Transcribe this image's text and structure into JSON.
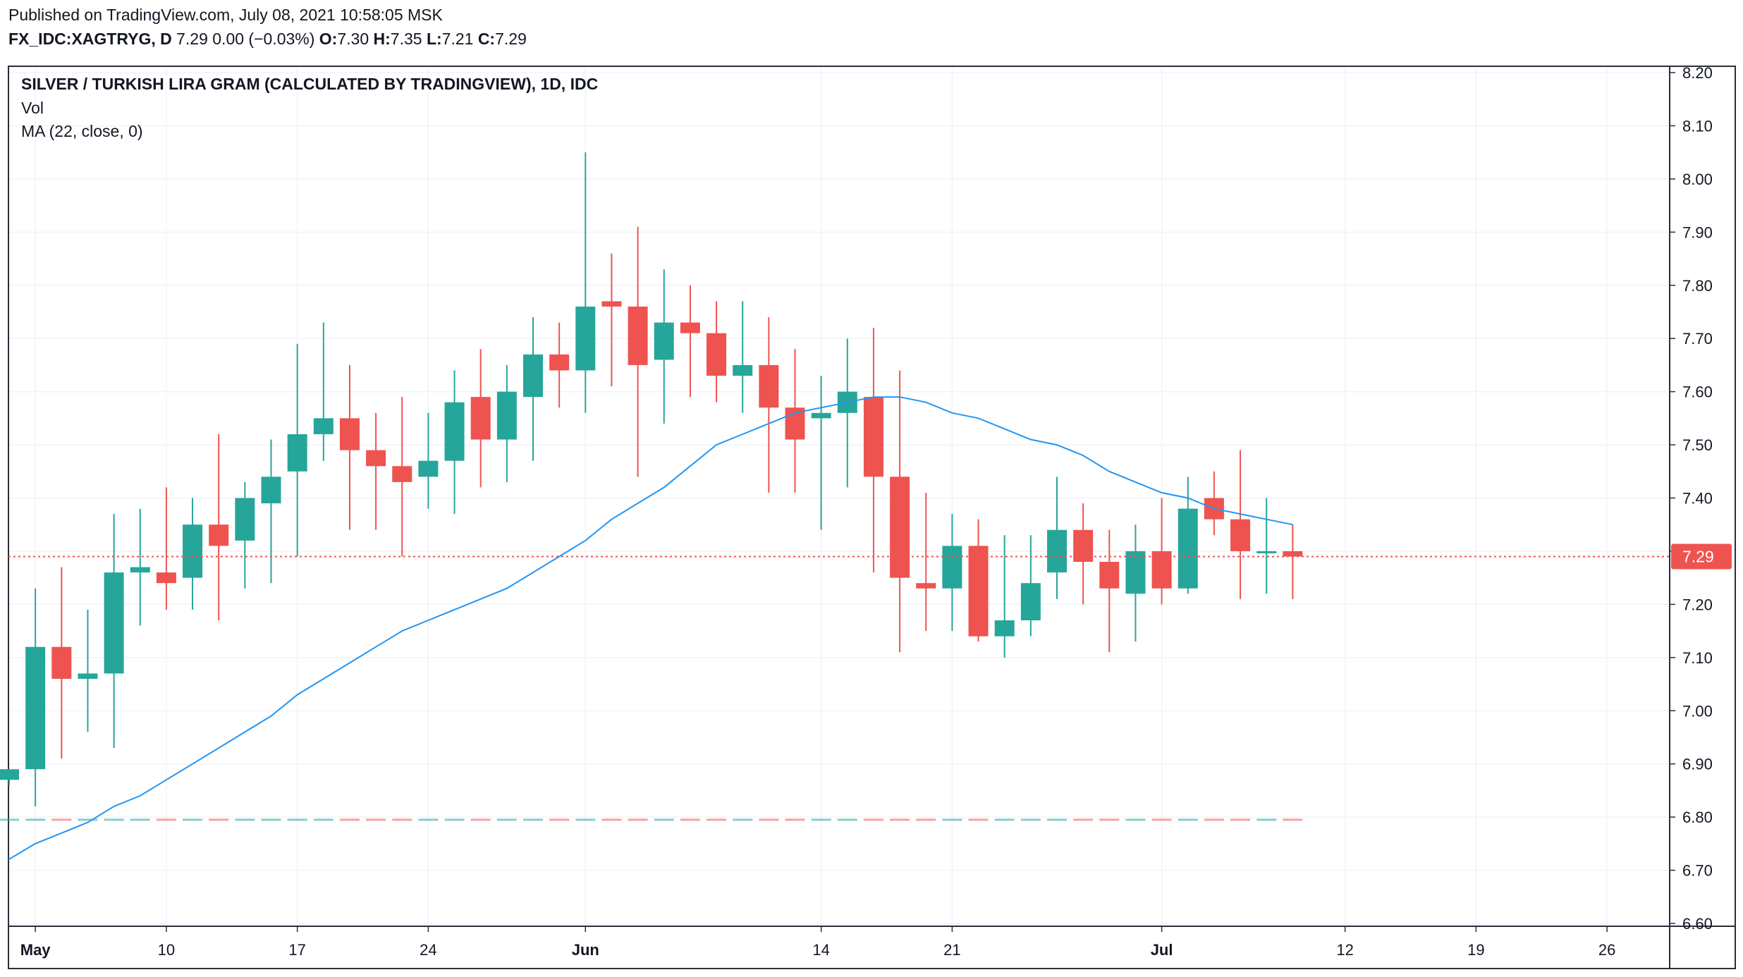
{
  "header": {
    "published": "Published on TradingView.com, July 08, 2021 10:58:05 MSK",
    "symbol": "FX_IDC:XAGTRYG, D",
    "last": "7.29",
    "change": "0.00 (−0.03%)",
    "open_label": "O:",
    "open": "7.30",
    "high_label": "H:",
    "high": "7.35",
    "low_label": "L:",
    "low": "7.21",
    "close_label": "C:",
    "close": "7.29"
  },
  "legend": {
    "title": "SILVER / TURKISH LIRA GRAM (CALCULATED BY TRADINGVIEW), 1D, IDC",
    "vol": "Vol",
    "ma": "MA (22, close, 0)"
  },
  "colors": {
    "up": "#26a69a",
    "down": "#ef5350",
    "ma": "#2196f3",
    "price_line": "#ef5350",
    "grid": "#f0f3fa",
    "text": "#131722"
  },
  "chart_data": {
    "type": "candlestick",
    "ylim": [
      6.6,
      8.2
    ],
    "y_ticks": [
      "8.20",
      "8.10",
      "8.00",
      "7.90",
      "7.80",
      "7.70",
      "7.60",
      "7.50",
      "7.40",
      "7.30",
      "7.20",
      "7.10",
      "7.00",
      "6.90",
      "6.80",
      "6.70",
      "6.60"
    ],
    "x_ticks": [
      {
        "label": "May",
        "date": "2021-05-03",
        "bold": true
      },
      {
        "label": "10",
        "date": "2021-05-10",
        "bold": false
      },
      {
        "label": "17",
        "date": "2021-05-17",
        "bold": false
      },
      {
        "label": "24",
        "date": "2021-05-24",
        "bold": false
      },
      {
        "label": "Jun",
        "date": "2021-06-01",
        "bold": true
      },
      {
        "label": "14",
        "date": "2021-06-14",
        "bold": false
      },
      {
        "label": "21",
        "date": "2021-06-21",
        "bold": false
      },
      {
        "label": "Jul",
        "date": "2021-07-01",
        "bold": true
      },
      {
        "label": "12",
        "date": "2021-07-12",
        "bold": false
      },
      {
        "label": "19",
        "date": "2021-07-19",
        "bold": false
      },
      {
        "label": "26",
        "date": "2021-07-26",
        "bold": false
      }
    ],
    "last_price": "7.29",
    "candles": [
      {
        "date": "2021-04-30",
        "open": 6.87,
        "high": 6.89,
        "low": 6.86,
        "close": 6.89
      },
      {
        "date": "2021-05-03",
        "open": 6.89,
        "high": 7.23,
        "low": 6.82,
        "close": 7.12
      },
      {
        "date": "2021-05-04",
        "open": 7.12,
        "high": 7.27,
        "low": 6.91,
        "close": 7.06
      },
      {
        "date": "2021-05-05",
        "open": 7.06,
        "high": 7.19,
        "low": 6.96,
        "close": 7.07
      },
      {
        "date": "2021-05-06",
        "open": 7.07,
        "high": 7.37,
        "low": 6.93,
        "close": 7.26
      },
      {
        "date": "2021-05-07",
        "open": 7.26,
        "high": 7.38,
        "low": 7.16,
        "close": 7.27
      },
      {
        "date": "2021-05-10",
        "open": 7.26,
        "high": 7.42,
        "low": 7.19,
        "close": 7.24
      },
      {
        "date": "2021-05-11",
        "open": 7.25,
        "high": 7.4,
        "low": 7.19,
        "close": 7.35
      },
      {
        "date": "2021-05-12",
        "open": 7.35,
        "high": 7.52,
        "low": 7.17,
        "close": 7.31
      },
      {
        "date": "2021-05-13",
        "open": 7.32,
        "high": 7.43,
        "low": 7.23,
        "close": 7.4
      },
      {
        "date": "2021-05-14",
        "open": 7.39,
        "high": 7.51,
        "low": 7.24,
        "close": 7.44
      },
      {
        "date": "2021-05-17",
        "open": 7.45,
        "high": 7.69,
        "low": 7.29,
        "close": 7.52
      },
      {
        "date": "2021-05-18",
        "open": 7.52,
        "high": 7.73,
        "low": 7.47,
        "close": 7.55
      },
      {
        "date": "2021-05-19",
        "open": 7.55,
        "high": 7.65,
        "low": 7.34,
        "close": 7.49
      },
      {
        "date": "2021-05-20",
        "open": 7.49,
        "high": 7.56,
        "low": 7.34,
        "close": 7.46
      },
      {
        "date": "2021-05-21",
        "open": 7.46,
        "high": 7.59,
        "low": 7.29,
        "close": 7.43
      },
      {
        "date": "2021-05-24",
        "open": 7.44,
        "high": 7.56,
        "low": 7.38,
        "close": 7.47
      },
      {
        "date": "2021-05-25",
        "open": 7.47,
        "high": 7.64,
        "low": 7.37,
        "close": 7.58
      },
      {
        "date": "2021-05-26",
        "open": 7.59,
        "high": 7.68,
        "low": 7.42,
        "close": 7.51
      },
      {
        "date": "2021-05-27",
        "open": 7.51,
        "high": 7.65,
        "low": 7.43,
        "close": 7.6
      },
      {
        "date": "2021-05-28",
        "open": 7.59,
        "high": 7.74,
        "low": 7.47,
        "close": 7.67
      },
      {
        "date": "2021-05-31",
        "open": 7.67,
        "high": 7.73,
        "low": 7.57,
        "close": 7.64
      },
      {
        "date": "2021-06-01",
        "open": 7.64,
        "high": 8.05,
        "low": 7.56,
        "close": 7.76
      },
      {
        "date": "2021-06-02",
        "open": 7.77,
        "high": 7.86,
        "low": 7.61,
        "close": 7.76
      },
      {
        "date": "2021-06-03",
        "open": 7.76,
        "high": 7.91,
        "low": 7.44,
        "close": 7.65
      },
      {
        "date": "2021-06-04",
        "open": 7.66,
        "high": 7.83,
        "low": 7.54,
        "close": 7.73
      },
      {
        "date": "2021-06-07",
        "open": 7.73,
        "high": 7.8,
        "low": 7.59,
        "close": 7.71
      },
      {
        "date": "2021-06-08",
        "open": 7.71,
        "high": 7.77,
        "low": 7.58,
        "close": 7.63
      },
      {
        "date": "2021-06-09",
        "open": 7.63,
        "high": 7.77,
        "low": 7.56,
        "close": 7.65
      },
      {
        "date": "2021-06-10",
        "open": 7.65,
        "high": 7.74,
        "low": 7.41,
        "close": 7.57
      },
      {
        "date": "2021-06-11",
        "open": 7.57,
        "high": 7.68,
        "low": 7.41,
        "close": 7.51
      },
      {
        "date": "2021-06-14",
        "open": 7.55,
        "high": 7.63,
        "low": 7.34,
        "close": 7.56
      },
      {
        "date": "2021-06-15",
        "open": 7.56,
        "high": 7.7,
        "low": 7.42,
        "close": 7.6
      },
      {
        "date": "2021-06-16",
        "open": 7.59,
        "high": 7.72,
        "low": 7.26,
        "close": 7.44
      },
      {
        "date": "2021-06-17",
        "open": 7.44,
        "high": 7.64,
        "low": 7.11,
        "close": 7.25
      },
      {
        "date": "2021-06-18",
        "open": 7.24,
        "high": 7.41,
        "low": 7.15,
        "close": 7.23
      },
      {
        "date": "2021-06-21",
        "open": 7.23,
        "high": 7.37,
        "low": 7.15,
        "close": 7.31
      },
      {
        "date": "2021-06-22",
        "open": 7.31,
        "high": 7.36,
        "low": 7.13,
        "close": 7.14
      },
      {
        "date": "2021-06-23",
        "open": 7.14,
        "high": 7.33,
        "low": 7.1,
        "close": 7.17
      },
      {
        "date": "2021-06-24",
        "open": 7.17,
        "high": 7.33,
        "low": 7.14,
        "close": 7.24
      },
      {
        "date": "2021-06-25",
        "open": 7.26,
        "high": 7.44,
        "low": 7.21,
        "close": 7.34
      },
      {
        "date": "2021-06-28",
        "open": 7.34,
        "high": 7.39,
        "low": 7.2,
        "close": 7.28
      },
      {
        "date": "2021-06-29",
        "open": 7.28,
        "high": 7.34,
        "low": 7.11,
        "close": 7.23
      },
      {
        "date": "2021-06-30",
        "open": 7.22,
        "high": 7.35,
        "low": 7.13,
        "close": 7.3
      },
      {
        "date": "2021-07-01",
        "open": 7.3,
        "high": 7.4,
        "low": 7.2,
        "close": 7.23
      },
      {
        "date": "2021-07-02",
        "open": 7.23,
        "high": 7.44,
        "low": 7.22,
        "close": 7.38
      },
      {
        "date": "2021-07-05",
        "open": 7.4,
        "high": 7.45,
        "low": 7.33,
        "close": 7.36
      },
      {
        "date": "2021-07-06",
        "open": 7.36,
        "high": 7.49,
        "low": 7.21,
        "close": 7.3
      },
      {
        "date": "2021-07-07",
        "open": 7.3,
        "high": 7.4,
        "low": 7.22,
        "close": 7.3
      },
      {
        "date": "2021-07-08",
        "open": 7.3,
        "high": 7.35,
        "low": 7.21,
        "close": 7.29
      }
    ],
    "ma_series": [
      {
        "date": "2021-04-30",
        "value": 6.72
      },
      {
        "date": "2021-05-03",
        "value": 6.75
      },
      {
        "date": "2021-05-04",
        "value": 6.77
      },
      {
        "date": "2021-05-05",
        "value": 6.79
      },
      {
        "date": "2021-05-06",
        "value": 6.82
      },
      {
        "date": "2021-05-07",
        "value": 6.84
      },
      {
        "date": "2021-05-10",
        "value": 6.87
      },
      {
        "date": "2021-05-11",
        "value": 6.9
      },
      {
        "date": "2021-05-12",
        "value": 6.93
      },
      {
        "date": "2021-05-13",
        "value": 6.96
      },
      {
        "date": "2021-05-14",
        "value": 6.99
      },
      {
        "date": "2021-05-17",
        "value": 7.03
      },
      {
        "date": "2021-05-18",
        "value": 7.06
      },
      {
        "date": "2021-05-19",
        "value": 7.09
      },
      {
        "date": "2021-05-20",
        "value": 7.12
      },
      {
        "date": "2021-05-21",
        "value": 7.15
      },
      {
        "date": "2021-05-24",
        "value": 7.17
      },
      {
        "date": "2021-05-25",
        "value": 7.19
      },
      {
        "date": "2021-05-26",
        "value": 7.21
      },
      {
        "date": "2021-05-27",
        "value": 7.23
      },
      {
        "date": "2021-05-28",
        "value": 7.26
      },
      {
        "date": "2021-05-31",
        "value": 7.29
      },
      {
        "date": "2021-06-01",
        "value": 7.32
      },
      {
        "date": "2021-06-02",
        "value": 7.36
      },
      {
        "date": "2021-06-03",
        "value": 7.39
      },
      {
        "date": "2021-06-04",
        "value": 7.42
      },
      {
        "date": "2021-06-07",
        "value": 7.46
      },
      {
        "date": "2021-06-08",
        "value": 7.5
      },
      {
        "date": "2021-06-09",
        "value": 7.52
      },
      {
        "date": "2021-06-10",
        "value": 7.54
      },
      {
        "date": "2021-06-11",
        "value": 7.56
      },
      {
        "date": "2021-06-14",
        "value": 7.57
      },
      {
        "date": "2021-06-15",
        "value": 7.58
      },
      {
        "date": "2021-06-16",
        "value": 7.59
      },
      {
        "date": "2021-06-17",
        "value": 7.59
      },
      {
        "date": "2021-06-18",
        "value": 7.58
      },
      {
        "date": "2021-06-21",
        "value": 7.56
      },
      {
        "date": "2021-06-22",
        "value": 7.55
      },
      {
        "date": "2021-06-23",
        "value": 7.53
      },
      {
        "date": "2021-06-24",
        "value": 7.51
      },
      {
        "date": "2021-06-25",
        "value": 7.5
      },
      {
        "date": "2021-06-28",
        "value": 7.48
      },
      {
        "date": "2021-06-29",
        "value": 7.45
      },
      {
        "date": "2021-06-30",
        "value": 7.43
      },
      {
        "date": "2021-07-01",
        "value": 7.41
      },
      {
        "date": "2021-07-02",
        "value": 7.4
      },
      {
        "date": "2021-07-05",
        "value": 7.38
      },
      {
        "date": "2021-07-06",
        "value": 7.37
      },
      {
        "date": "2021-07-07",
        "value": 7.36
      },
      {
        "date": "2021-07-08",
        "value": 7.35
      }
    ]
  }
}
